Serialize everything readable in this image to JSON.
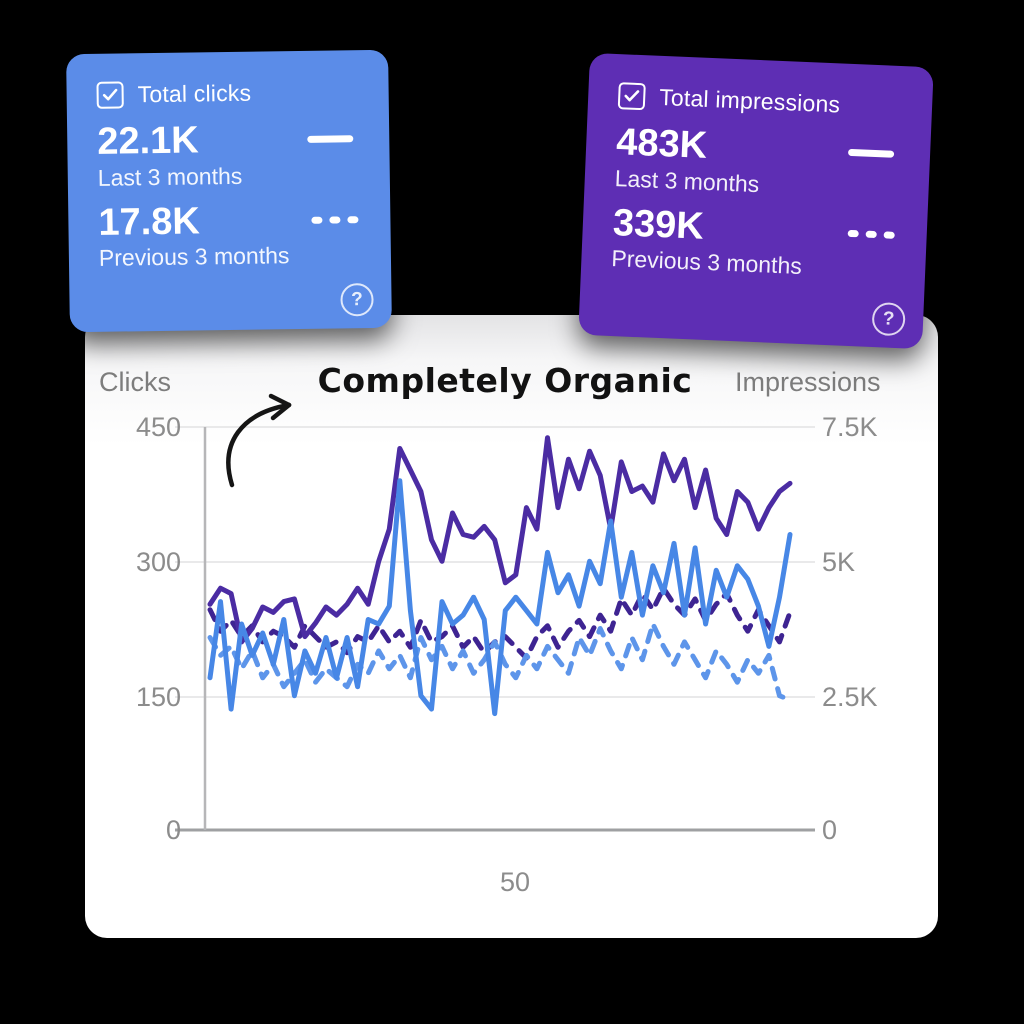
{
  "cards": {
    "clicks": {
      "label": "Total clicks",
      "current_value": "22.1K",
      "current_label": "Last 3 months",
      "previous_value": "17.8K",
      "previous_label": "Previous 3 months",
      "help_glyph": "?",
      "color": "#5b8ce8"
    },
    "impressions": {
      "label": "Total impressions",
      "current_value": "483K",
      "current_label": "Last 3 months",
      "previous_value": "339K",
      "previous_label": "Previous 3 months",
      "help_glyph": "?",
      "color": "#5e2eb4"
    }
  },
  "chart_data": {
    "type": "line",
    "annotation": "Completely Organic",
    "left_axis": {
      "label": "Clicks",
      "ticks": [
        "450",
        "300",
        "150",
        "0"
      ],
      "max": 450
    },
    "right_axis": {
      "label": "Impressions",
      "ticks": [
        "7.5K",
        "5K",
        "2.5K",
        "0"
      ],
      "max": 7500
    },
    "x_tick": "50",
    "grid": true,
    "series": [
      {
        "id": "impressions-previous-line",
        "name": "Impressions - Previous 3 months",
        "axis": "right",
        "style": "dashed",
        "color": "#3e2492",
        "values": [
          4100,
          3700,
          3900,
          3600,
          3800,
          3500,
          3700,
          3600,
          3400,
          3800,
          3600,
          3400,
          3500,
          3300,
          3600,
          3500,
          3800,
          3500,
          3700,
          3400,
          3900,
          3500,
          3600,
          3800,
          3400,
          3600,
          3300,
          3500,
          3600,
          3400,
          3200,
          3600,
          3800,
          3400,
          3700,
          3900,
          3600,
          4000,
          3700,
          4300,
          4000,
          4400,
          4100,
          4500,
          4200,
          4000,
          4300,
          3900,
          4200,
          4400,
          4000,
          3700,
          4100,
          3800,
          3500,
          4050
        ]
      },
      {
        "id": "clicks-previous-line",
        "name": "Clicks - Previous 3 months",
        "axis": "left",
        "style": "dashed",
        "color": "#5d95ea",
        "values": [
          215,
          195,
          205,
          180,
          200,
          170,
          185,
          160,
          175,
          190,
          165,
          180,
          170,
          160,
          185,
          175,
          200,
          180,
          195,
          170,
          215,
          190,
          205,
          180,
          200,
          175,
          190,
          210,
          185,
          170,
          195,
          180,
          205,
          190,
          175,
          215,
          195,
          225,
          200,
          180,
          215,
          190,
          230,
          205,
          185,
          210,
          190,
          170,
          200,
          185,
          165,
          190,
          175,
          195,
          150,
          145
        ]
      },
      {
        "id": "impressions-current-line",
        "name": "Impressions - Last 3 months",
        "axis": "right",
        "style": "solid",
        "color": "#4b2ca3",
        "values": [
          4200,
          4500,
          4400,
          3500,
          3750,
          4150,
          4050,
          4250,
          4300,
          3600,
          3850,
          4150,
          4000,
          4200,
          4500,
          4200,
          5000,
          5600,
          7100,
          6700,
          6300,
          5400,
          5000,
          5900,
          5500,
          5450,
          5650,
          5400,
          4600,
          4750,
          6000,
          5600,
          7300,
          6000,
          6900,
          6350,
          7050,
          6600,
          5600,
          6850,
          6300,
          6400,
          6100,
          7000,
          6500,
          6900,
          6000,
          6700,
          5800,
          5500,
          6300,
          6100,
          5600,
          6000,
          6300,
          6450
        ]
      },
      {
        "id": "clicks-current-line",
        "name": "Clicks - Last 3 months",
        "axis": "left",
        "style": "solid",
        "color": "#4787e6",
        "values": [
          170,
          255,
          135,
          230,
          195,
          220,
          185,
          235,
          150,
          200,
          175,
          215,
          170,
          215,
          160,
          235,
          230,
          250,
          390,
          245,
          150,
          135,
          255,
          230,
          240,
          260,
          235,
          130,
          245,
          260,
          245,
          230,
          310,
          265,
          285,
          250,
          300,
          275,
          345,
          260,
          310,
          240,
          295,
          265,
          320,
          240,
          315,
          230,
          290,
          260,
          295,
          280,
          250,
          205,
          260,
          330
        ]
      }
    ]
  }
}
